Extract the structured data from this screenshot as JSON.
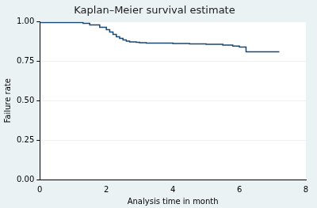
{
  "chart_data": {
    "type": "line",
    "title": "Kaplan–Meier survival estimate",
    "x_label": "Analysis time in month",
    "y_label": "Failure rate",
    "x": [
      0,
      1.3,
      1.5,
      1.8,
      2.0,
      2.1,
      2.2,
      2.3,
      2.4,
      2.5,
      2.6,
      2.7,
      2.9,
      3.0,
      3.2,
      4.0,
      4.5,
      5.0,
      5.5,
      5.8,
      6.0,
      6.2,
      6.5,
      7.2
    ],
    "values": [
      1.0,
      0.995,
      0.99,
      0.98,
      0.965,
      0.95,
      0.935,
      0.92,
      0.905,
      0.895,
      0.885,
      0.878,
      0.873,
      0.87,
      0.868,
      0.865,
      0.862,
      0.86,
      0.857,
      0.852,
      0.846,
      0.84,
      0.81,
      0.81
    ],
    "color": "#1a476f",
    "line_style": "step",
    "xlim": [
      0,
      8
    ],
    "xticks": [
      0,
      2,
      4,
      6,
      8
    ],
    "ylim": [
      0,
      1
    ],
    "yticks": [
      {
        "value": 0,
        "label": "0.00"
      },
      {
        "value": 0.25,
        "label": "0.25"
      },
      {
        "value": 0.5,
        "label": "0.50"
      },
      {
        "value": 0.75,
        "label": "0.75"
      },
      {
        "value": 1,
        "label": "1.00"
      }
    ],
    "grid": true
  }
}
